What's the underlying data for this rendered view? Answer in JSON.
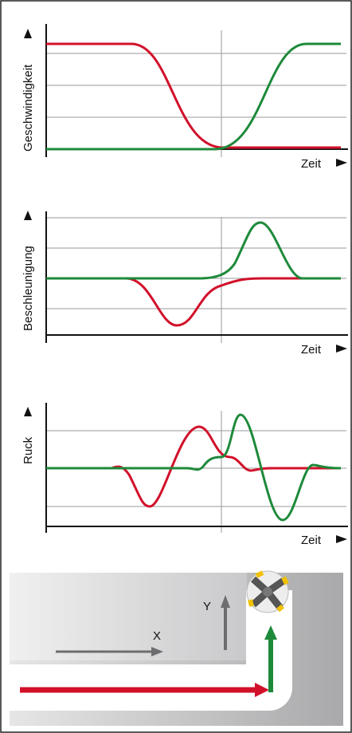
{
  "panels": [
    {
      "ylabel": "Geschwindigkeit",
      "xlabel": "Zeit"
    },
    {
      "ylabel": "Beschleunigung",
      "xlabel": "Zeit"
    },
    {
      "ylabel": "Ruck",
      "xlabel": "Zeit"
    }
  ],
  "illustration": {
    "x_label": "X",
    "y_label": "Y"
  }
}
